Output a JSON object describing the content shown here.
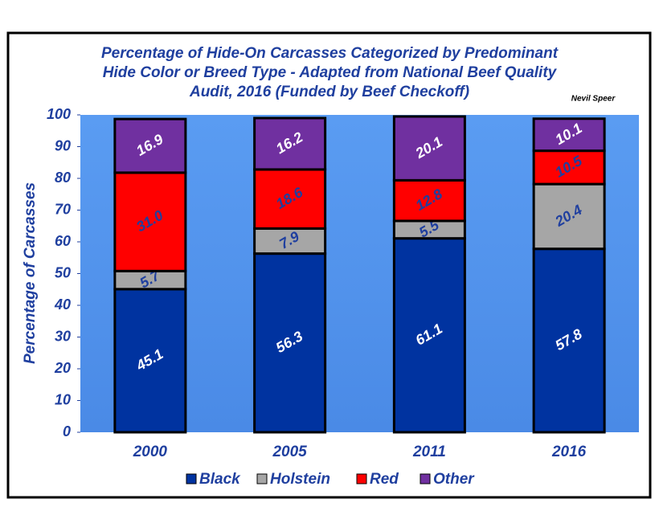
{
  "chart_data": {
    "type": "stacked_bar",
    "title": [
      "Percentage of Hide-On Carcasses Categorized by Predominant",
      "Hide Color or Breed Type - Adapted from National Beef Quality",
      "Audit, 2016 (Funded by Beef Checkoff)"
    ],
    "annotation": "Nevil Speer",
    "y_label": "Percentage of Carcasses",
    "categories": [
      "2000",
      "2005",
      "2011",
      "2016"
    ],
    "series": [
      {
        "name": "Black",
        "color": "#0033a0",
        "label_color": "#ffffff",
        "values": [
          45.1,
          56.3,
          61.1,
          57.8
        ],
        "value_labels": [
          "45.1",
          "56.3",
          "61.1",
          "57.8"
        ]
      },
      {
        "name": "Holstein",
        "color": "#a6a6a6",
        "label_color": "#1f3f9f",
        "values": [
          5.7,
          7.9,
          5.5,
          20.4
        ],
        "value_labels": [
          "5.7",
          "7.9",
          "5.5",
          "20.4"
        ]
      },
      {
        "name": "Red",
        "color": "#ff0000",
        "label_color": "#1f3f9f",
        "values": [
          31.0,
          18.6,
          12.8,
          10.5
        ],
        "value_labels": [
          "31.0",
          "18.6",
          "12.8",
          "10.5"
        ]
      },
      {
        "name": "Other",
        "color": "#7030a0",
        "label_color": "#ffffff",
        "values": [
          16.9,
          16.2,
          20.1,
          10.1
        ],
        "value_labels": [
          "16.9",
          "16.2",
          "20.1",
          "10.1"
        ]
      }
    ],
    "ylim": [
      0,
      100
    ],
    "yticks": [
      0,
      10,
      20,
      30,
      40,
      50,
      60,
      70,
      80,
      90,
      100
    ],
    "legend": "bottom"
  }
}
